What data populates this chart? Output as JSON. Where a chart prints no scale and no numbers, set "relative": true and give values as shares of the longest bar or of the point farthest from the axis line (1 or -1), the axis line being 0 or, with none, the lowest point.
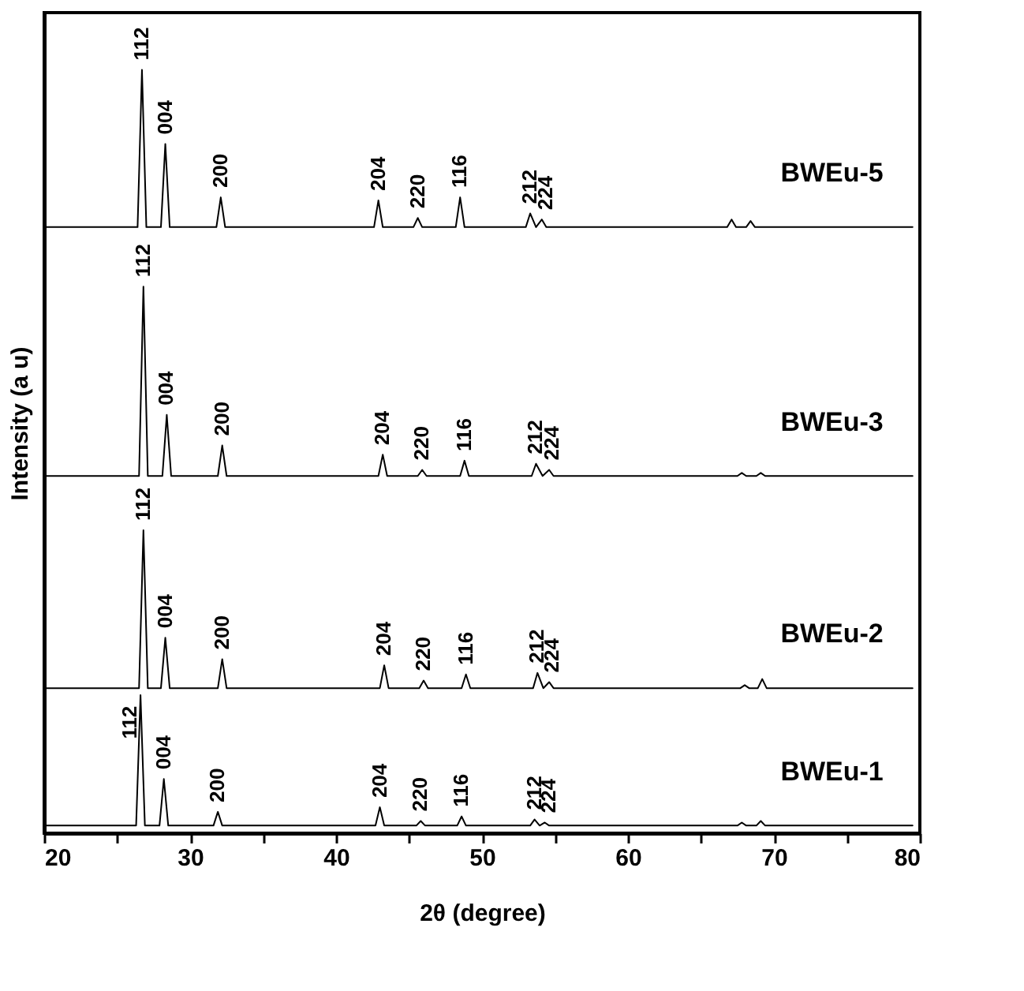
{
  "chart_data": {
    "type": "line",
    "relative": true,
    "xlabel": "2θ (degree)",
    "ylabel": "Intensity (a u)",
    "xlim": [
      20,
      80
    ],
    "xticks": [
      20,
      {
        "value": 25,
        "label": null
      },
      30,
      {
        "value": 35,
        "label": null
      },
      40,
      {
        "value": 45,
        "label": null
      },
      50,
      {
        "value": 55,
        "label": null
      },
      60,
      {
        "value": 65,
        "label": null
      },
      70,
      {
        "value": 75,
        "label": null
      },
      80
    ],
    "tick_labels": "x",
    "grid": false,
    "marker": "none",
    "line_style": "solid",
    "series": [
      {
        "name": "BWEu-5",
        "color": "#000000",
        "x": [
          20,
          26.4,
          26.7,
          27.0,
          28.0,
          28.3,
          28.6,
          31.8,
          32.1,
          32.4,
          42.6,
          42.9,
          43.2,
          45.3,
          45.6,
          45.9,
          48.2,
          48.5,
          48.8,
          53.0,
          53.3,
          53.7,
          54.1,
          54.4,
          66.8,
          67.1,
          67.4,
          68.1,
          68.4,
          68.7,
          79.5
        ],
        "values": [
          0.794,
          0.794,
          1.0,
          0.794,
          0.794,
          0.903,
          0.794,
          0.794,
          0.833,
          0.794,
          0.794,
          0.829,
          0.794,
          0.794,
          0.806,
          0.794,
          0.794,
          0.833,
          0.794,
          0.794,
          0.812,
          0.794,
          0.804,
          0.794,
          0.794,
          0.804,
          0.794,
          0.794,
          0.802,
          0.794,
          0.794
        ]
      },
      {
        "name": "BWEu-3",
        "color": "#000000",
        "x": [
          20,
          26.5,
          26.8,
          27.1,
          28.1,
          28.4,
          28.7,
          31.9,
          32.2,
          32.5,
          42.9,
          43.2,
          43.5,
          45.6,
          45.9,
          46.2,
          48.5,
          48.8,
          49.1,
          53.4,
          53.7,
          54.15,
          54.6,
          54.9,
          67.5,
          67.8,
          68.1,
          68.8,
          69.1,
          69.4,
          79.5
        ],
        "values": [
          0.468,
          0.468,
          0.716,
          0.468,
          0.468,
          0.548,
          0.468,
          0.468,
          0.508,
          0.468,
          0.468,
          0.496,
          0.468,
          0.468,
          0.476,
          0.468,
          0.468,
          0.488,
          0.468,
          0.468,
          0.484,
          0.468,
          0.476,
          0.468,
          0.468,
          0.472,
          0.468,
          0.468,
          0.472,
          0.468,
          0.468
        ]
      },
      {
        "name": "BWEu-2",
        "color": "#000000",
        "x": [
          20,
          26.5,
          26.8,
          27.1,
          28.0,
          28.3,
          28.6,
          31.9,
          32.2,
          32.5,
          43.0,
          43.3,
          43.6,
          45.7,
          46.0,
          46.3,
          48.6,
          48.9,
          49.2,
          53.5,
          53.8,
          54.2,
          54.6,
          54.9,
          67.7,
          68.0,
          68.3,
          68.9,
          69.2,
          69.5,
          79.5
        ],
        "values": [
          0.19,
          0.19,
          0.397,
          0.19,
          0.19,
          0.256,
          0.19,
          0.19,
          0.228,
          0.19,
          0.19,
          0.22,
          0.19,
          0.19,
          0.2,
          0.19,
          0.19,
          0.208,
          0.19,
          0.19,
          0.21,
          0.19,
          0.198,
          0.19,
          0.19,
          0.194,
          0.19,
          0.19,
          0.202,
          0.19,
          0.19
        ]
      },
      {
        "name": "BWEu-1",
        "color": "#000000",
        "x": [
          20,
          26.3,
          26.6,
          26.9,
          27.9,
          28.2,
          28.5,
          31.6,
          31.9,
          32.2,
          42.7,
          43.0,
          43.3,
          45.5,
          45.8,
          46.1,
          48.3,
          48.6,
          48.9,
          53.3,
          53.6,
          53.95,
          54.3,
          54.6,
          67.5,
          67.8,
          68.1,
          68.8,
          69.1,
          69.4,
          79.5
        ],
        "values": [
          0.01,
          0.01,
          0.181,
          0.01,
          0.01,
          0.071,
          0.01,
          0.01,
          0.028,
          0.01,
          0.01,
          0.034,
          0.01,
          0.01,
          0.016,
          0.01,
          0.01,
          0.022,
          0.01,
          0.01,
          0.018,
          0.01,
          0.014,
          0.01,
          0.01,
          0.014,
          0.01,
          0.01,
          0.016,
          0.01,
          0.01
        ]
      }
    ],
    "annotations": [
      {
        "text": "112",
        "x": 26.7,
        "y": 1.0
      },
      {
        "text": "004",
        "x": 28.3,
        "y": 0.903
      },
      {
        "text": "200",
        "x": 32.1,
        "y": 0.833
      },
      {
        "text": "204",
        "x": 42.9,
        "y": 0.829
      },
      {
        "text": "220",
        "x": 45.6,
        "y": 0.806
      },
      {
        "text": "116",
        "x": 48.5,
        "y": 0.833
      },
      {
        "text": "212",
        "x": 53.3,
        "y": 0.812
      },
      {
        "text": "224",
        "x": 54.4,
        "y": 0.804
      },
      {
        "text": "112",
        "x": 26.8,
        "y": 0.716
      },
      {
        "text": "004",
        "x": 28.4,
        "y": 0.548
      },
      {
        "text": "200",
        "x": 32.2,
        "y": 0.508
      },
      {
        "text": "204",
        "x": 43.2,
        "y": 0.496
      },
      {
        "text": "220",
        "x": 45.9,
        "y": 0.476
      },
      {
        "text": "116",
        "x": 48.8,
        "y": 0.488
      },
      {
        "text": "212",
        "x": 53.7,
        "y": 0.484
      },
      {
        "text": "224",
        "x": 54.8,
        "y": 0.476
      },
      {
        "text": "112",
        "x": 26.8,
        "y": 0.397
      },
      {
        "text": "004",
        "x": 28.3,
        "y": 0.256
      },
      {
        "text": "200",
        "x": 32.2,
        "y": 0.228
      },
      {
        "text": "204",
        "x": 43.3,
        "y": 0.22
      },
      {
        "text": "220",
        "x": 46.0,
        "y": 0.2
      },
      {
        "text": "116",
        "x": 48.9,
        "y": 0.208
      },
      {
        "text": "212",
        "x": 53.8,
        "y": 0.21
      },
      {
        "text": "224",
        "x": 54.8,
        "y": 0.198
      },
      {
        "text": "112",
        "x": 25.9,
        "y": 0.111
      },
      {
        "text": "004",
        "x": 28.2,
        "y": 0.071
      },
      {
        "text": "200",
        "x": 31.9,
        "y": 0.028
      },
      {
        "text": "204",
        "x": 43.0,
        "y": 0.034
      },
      {
        "text": "220",
        "x": 45.8,
        "y": 0.016
      },
      {
        "text": "116",
        "x": 48.6,
        "y": 0.022
      },
      {
        "text": "212",
        "x": 53.6,
        "y": 0.018
      },
      {
        "text": "224",
        "x": 54.6,
        "y": 0.014
      }
    ]
  }
}
